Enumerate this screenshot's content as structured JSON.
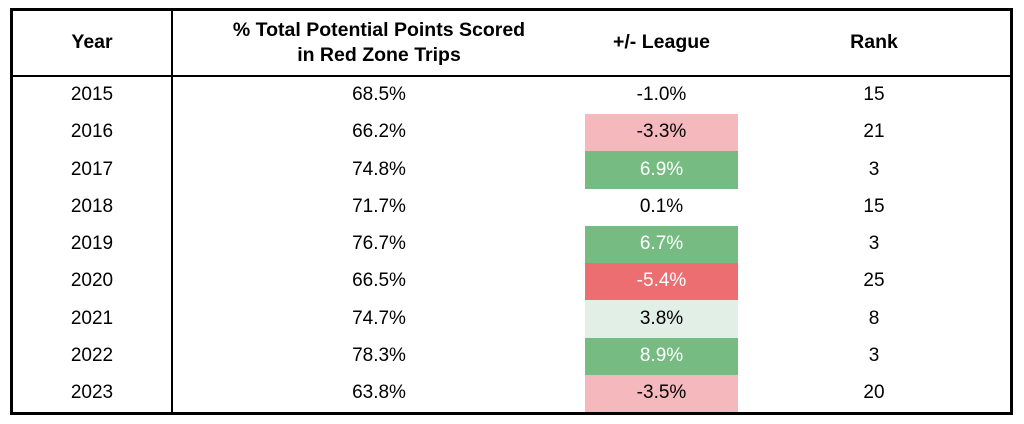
{
  "colors": {
    "strong_green": "#76bc82",
    "light_green": "#e2efe6",
    "strong_red": "#ec6e71",
    "light_red": "#f4b8bd",
    "border": "#000000",
    "text": "#000000",
    "text_on_strong": "#ffffff",
    "background": "#ffffff"
  },
  "header": {
    "col_year": "Year",
    "col_pct_line1": "% Total Potential Points Scored",
    "col_pct_line2": "in Red Zone Trips",
    "col_diff": "+/- League",
    "col_rank": "Rank"
  },
  "chart_data": {
    "type": "table",
    "columns": [
      "Year",
      "% Total Potential Points Scored in Red Zone Trips",
      "+/- League",
      "Rank"
    ],
    "rows": [
      {
        "year": "2015",
        "pct": "68.5%",
        "diff": "-1.0%",
        "rank": "15",
        "highlight": "none"
      },
      {
        "year": "2016",
        "pct": "66.2%",
        "diff": "-3.3%",
        "rank": "21",
        "highlight": "light_red"
      },
      {
        "year": "2017",
        "pct": "74.8%",
        "diff": "6.9%",
        "rank": "3",
        "highlight": "strong_green"
      },
      {
        "year": "2018",
        "pct": "71.7%",
        "diff": "0.1%",
        "rank": "15",
        "highlight": "none"
      },
      {
        "year": "2019",
        "pct": "76.7%",
        "diff": "6.7%",
        "rank": "3",
        "highlight": "strong_green"
      },
      {
        "year": "2020",
        "pct": "66.5%",
        "diff": "-5.4%",
        "rank": "25",
        "highlight": "strong_red"
      },
      {
        "year": "2021",
        "pct": "74.7%",
        "diff": "3.8%",
        "rank": "8",
        "highlight": "light_green"
      },
      {
        "year": "2022",
        "pct": "78.3%",
        "diff": "8.9%",
        "rank": "3",
        "highlight": "strong_green"
      },
      {
        "year": "2023",
        "pct": "63.8%",
        "diff": "-3.5%",
        "rank": "20",
        "highlight": "light_red"
      }
    ],
    "notes": {
      "highlight_legend": "strong_green/strong_red cells use white text; light_red/light_green cells use black text; 'none' has no fill"
    }
  }
}
